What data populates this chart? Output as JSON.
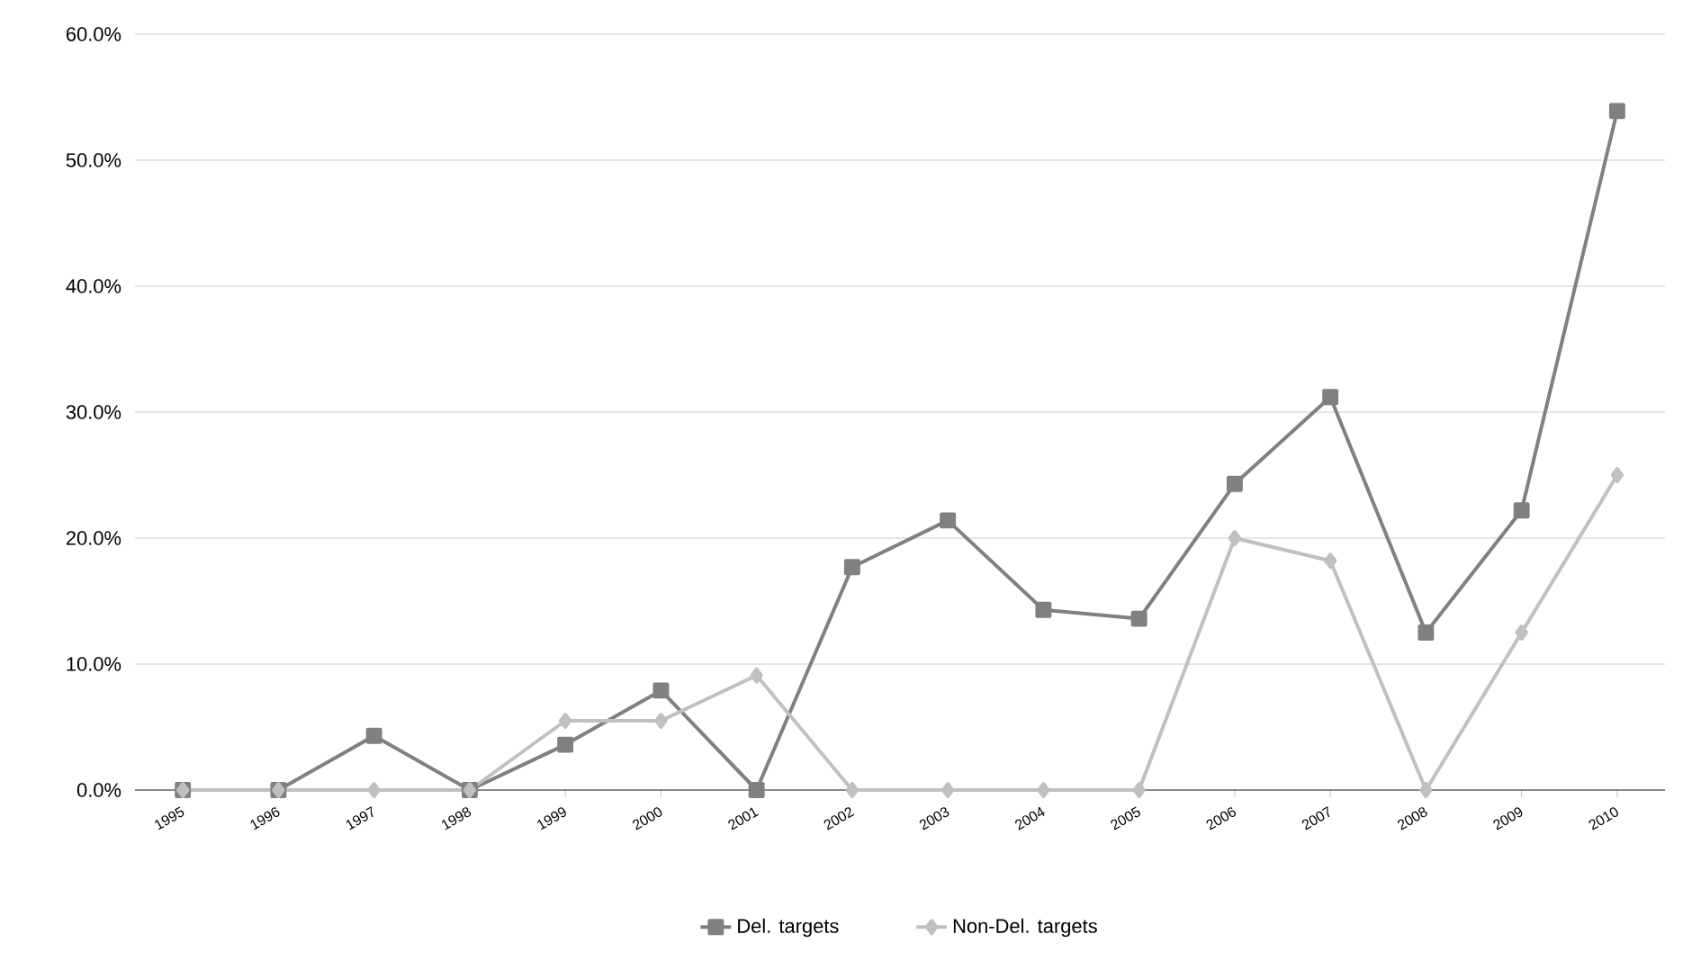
{
  "chart_data": {
    "type": "line",
    "categories": [
      "1995",
      "1996",
      "1997",
      "1998",
      "1999",
      "2000",
      "2001",
      "2002",
      "2003",
      "2004",
      "2005",
      "2006",
      "2007",
      "2008",
      "2009",
      "2010"
    ],
    "series": [
      {
        "name": "Del. targets",
        "color": "#808080",
        "marker": "square",
        "values": [
          0,
          0,
          4.3,
          0,
          3.6,
          7.9,
          0,
          17.7,
          21.4,
          14.3,
          13.6,
          24.3,
          31.2,
          12.5,
          22.2,
          53.9
        ]
      },
      {
        "name": "Non-Del. targets",
        "color": "#c0c0c0",
        "marker": "diamond",
        "values": [
          0,
          0,
          0,
          0,
          5.5,
          5.5,
          9.1,
          0,
          0,
          0,
          0,
          20.0,
          18.2,
          0,
          12.5,
          25.0
        ]
      }
    ],
    "ylim": [
      0,
      60
    ],
    "yticks": [
      {
        "value": 0,
        "label": "0.0%"
      },
      {
        "value": 10,
        "label": "10.0%"
      },
      {
        "value": 20,
        "label": "20.0%"
      },
      {
        "value": 30,
        "label": "30.0%"
      },
      {
        "value": 40,
        "label": "40.0%"
      },
      {
        "value": 50,
        "label": "50.0%"
      },
      {
        "value": 60,
        "label": "60.0%"
      }
    ],
    "grid": "y",
    "legend": "bottom"
  }
}
